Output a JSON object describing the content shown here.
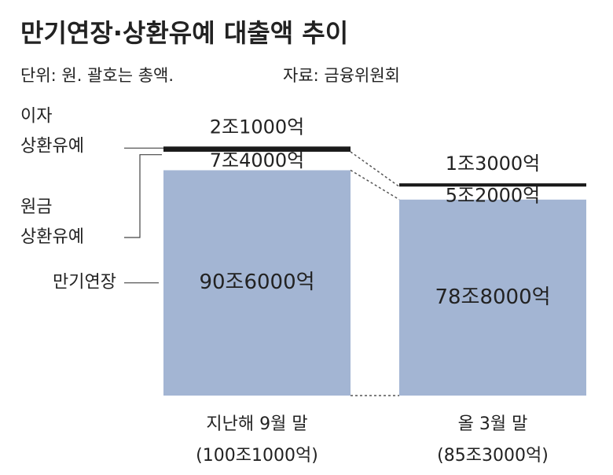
{
  "chart_data": {
    "type": "stacked_bar",
    "title": "만기연장·상환유예 대출액 추이",
    "subtitle": "단위: 원. 괄호는 총액.",
    "source": "자료: 금융위원회",
    "categories": [
      "지난해 9월 말",
      "올 3월 말"
    ],
    "total_labels": [
      "(100조1000억)",
      "(85조3000억)"
    ],
    "ylim": [
      0,
      1100000
    ],
    "series": [
      {
        "name": "만기연장",
        "color": "#a3b5d3",
        "values": [
          906000,
          788000
        ],
        "value_labels": [
          "90조6000억",
          "78조8000억"
        ]
      },
      {
        "name": "원금 상환유예",
        "color": "#ffffff",
        "values": [
          74000,
          52000
        ],
        "value_labels": [
          "7조4000억",
          "5조2000억"
        ]
      },
      {
        "name": "이자 상환유예",
        "color": "#1a1a1a",
        "values": [
          21000,
          13000
        ],
        "value_labels": [
          "2조1000억",
          "1조3000억"
        ]
      }
    ]
  }
}
